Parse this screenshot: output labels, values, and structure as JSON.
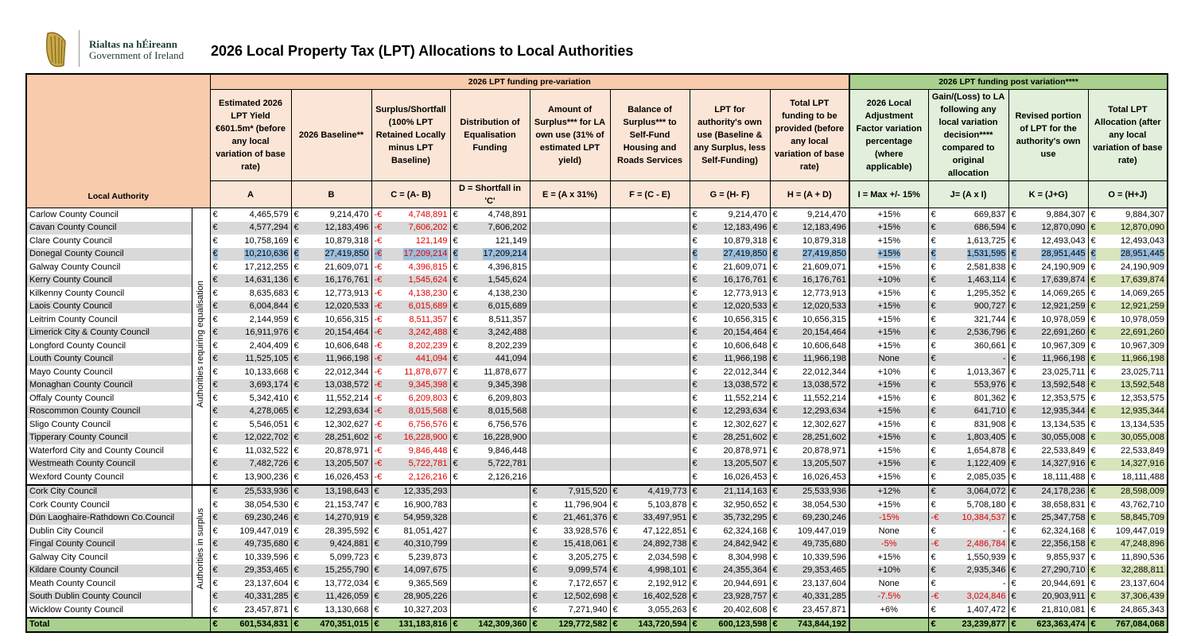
{
  "header": {
    "logo_line1": "Rialtas na hÉireann",
    "logo_line2": "Government of Ireland",
    "title": "2026 Local Property Tax (LPT) Allocations to Local Authorities"
  },
  "table": {
    "corner": "Local Authority",
    "currency": "€",
    "groups": [
      "2026 LPT funding pre-variation",
      "2026 LPT funding post variation****"
    ],
    "columns": [
      {
        "header": "Estimated 2026 LPT Yield €601.5m* (before any local variation of base rate)",
        "formula": "A"
      },
      {
        "header": "2026 Baseline**",
        "formula": "B"
      },
      {
        "header": "Surplus/Shortfall (100% LPT Retained Locally minus LPT Baseline)",
        "formula": "C = (A- B)"
      },
      {
        "header": "Distribution of Equalisation Funding",
        "formula": "D = Shortfall in 'C'"
      },
      {
        "header": "Amount of Surplus*** for LA own use (31% of estimated LPT yield)",
        "formula": "E = (A x 31%)"
      },
      {
        "header": "Balance of Surplus*** to Self-Fund Housing and Roads Services",
        "formula": "F = (C - E)"
      },
      {
        "header": "LPT for authority's own use (Baseline & any Surplus, less Self-Funding)",
        "formula": "G = (H- F)"
      },
      {
        "header": "Total LPT funding to be provided (before any local variation of base rate)",
        "formula": "H = (A + D)"
      },
      {
        "header": "2026 Local Adjustment Factor variation percentage (where applicable)",
        "formula": "I = Max +/- 15%"
      },
      {
        "header": "Gain/(Loss) to LA following any local variation decision**** compared to original allocation",
        "formula": "J= (A x I)"
      },
      {
        "header": "Revised portion of LPT for the authority's own use",
        "formula": "K = (J+G)"
      },
      {
        "header": "Total LPT Allocation (after any local variation of base rate)",
        "formula": "O = (H+J)"
      }
    ],
    "sections": [
      {
        "label": "Authorities requiring equalisation",
        "rows": [
          {
            "name": "Carlow County Council",
            "cells": [
              "4,465,579",
              "9,214,470",
              [
                "-€",
                "4,748,891"
              ],
              "4,748,891",
              null,
              null,
              "9,214,470",
              "9,214,470",
              "+15%",
              "669,837",
              "9,884,307",
              "9,884,307"
            ]
          },
          {
            "name": "Cavan County Council",
            "cells": [
              "4,577,294",
              "12,183,496",
              [
                "-€",
                "7,606,202"
              ],
              "7,606,202",
              null,
              null,
              "12,183,496",
              "12,183,496",
              "+15%",
              "686,594",
              "12,870,090",
              "12,870,090"
            ]
          },
          {
            "name": "Clare County Council",
            "cells": [
              "10,758,169",
              "10,879,318",
              [
                "-€",
                "121,149"
              ],
              "121,149",
              null,
              null,
              "10,879,318",
              "10,879,318",
              "+15%",
              "1,613,725",
              "12,493,043",
              "12,493,043"
            ]
          },
          {
            "name": "Donegal County Council",
            "cells": [
              "10,210,636",
              "27,419,850",
              [
                "-€",
                "17,209,214"
              ],
              "17,209,214",
              null,
              null,
              "27,419,850",
              "27,419,850",
              "+15%",
              "1,531,595",
              "28,951,445",
              "28,951,445"
            ]
          },
          {
            "name": "Galway County Council",
            "cells": [
              "17,212,255",
              "21,609,071",
              [
                "-€",
                "4,396,815"
              ],
              "4,396,815",
              null,
              null,
              "21,609,071",
              "21,609,071",
              "+15%",
              "2,581,838",
              "24,190,909",
              "24,190,909"
            ]
          },
          {
            "name": "Kerry County Council",
            "cells": [
              "14,631,136",
              "16,176,761",
              [
                "-€",
                "1,545,624"
              ],
              "1,545,624",
              null,
              null,
              "16,176,761",
              "16,176,761",
              "+10%",
              "1,463,114",
              "17,639,874",
              "17,639,874"
            ]
          },
          {
            "name": "Kilkenny County Council",
            "cells": [
              "8,635,683",
              "12,773,913",
              [
                "-€",
                "4,138,230"
              ],
              "4,138,230",
              null,
              null,
              "12,773,913",
              "12,773,913",
              "+15%",
              "1,295,352",
              "14,069,265",
              "14,069,265"
            ]
          },
          {
            "name": "Laois County Council",
            "cells": [
              "6,004,844",
              "12,020,533",
              [
                "-€",
                "6,015,689"
              ],
              "6,015,689",
              null,
              null,
              "12,020,533",
              "12,020,533",
              "+15%",
              "900,727",
              "12,921,259",
              "12,921,259"
            ]
          },
          {
            "name": "Leitrim County Council",
            "cells": [
              "2,144,959",
              "10,656,315",
              [
                "-€",
                "8,511,357"
              ],
              "8,511,357",
              null,
              null,
              "10,656,315",
              "10,656,315",
              "+15%",
              "321,744",
              "10,978,059",
              "10,978,059"
            ]
          },
          {
            "name": "Limerick City & County Council",
            "cells": [
              "16,911,976",
              "20,154,464",
              [
                "-€",
                "3,242,488"
              ],
              "3,242,488",
              null,
              null,
              "20,154,464",
              "20,154,464",
              "+15%",
              "2,536,796",
              "22,691,260",
              "22,691,260"
            ]
          },
          {
            "name": "Longford County Council",
            "cells": [
              "2,404,409",
              "10,606,648",
              [
                "-€",
                "8,202,239"
              ],
              "8,202,239",
              null,
              null,
              "10,606,648",
              "10,606,648",
              "+15%",
              "360,661",
              "10,967,309",
              "10,967,309"
            ]
          },
          {
            "name": "Louth County Council",
            "cells": [
              "11,525,105",
              "11,966,198",
              [
                "-€",
                "441,094"
              ],
              "441,094",
              null,
              null,
              "11,966,198",
              "11,966,198",
              "None",
              "-",
              "11,966,198",
              "11,966,198"
            ]
          },
          {
            "name": "Mayo County Council",
            "cells": [
              "10,133,668",
              "22,012,344",
              [
                "-€",
                "11,878,677"
              ],
              "11,878,677",
              null,
              null,
              "22,012,344",
              "22,012,344",
              "+10%",
              "1,013,367",
              "23,025,711",
              "23,025,711"
            ]
          },
          {
            "name": "Monaghan County Council",
            "cells": [
              "3,693,174",
              "13,038,572",
              [
                "-€",
                "9,345,398"
              ],
              "9,345,398",
              null,
              null,
              "13,038,572",
              "13,038,572",
              "+15%",
              "553,976",
              "13,592,548",
              "13,592,548"
            ]
          },
          {
            "name": "Offaly County Council",
            "cells": [
              "5,342,410",
              "11,552,214",
              [
                "-€",
                "6,209,803"
              ],
              "6,209,803",
              null,
              null,
              "11,552,214",
              "11,552,214",
              "+15%",
              "801,362",
              "12,353,575",
              "12,353,575"
            ]
          },
          {
            "name": "Roscommon County Council",
            "cells": [
              "4,278,065",
              "12,293,634",
              [
                "-€",
                "8,015,568"
              ],
              "8,015,568",
              null,
              null,
              "12,293,634",
              "12,293,634",
              "+15%",
              "641,710",
              "12,935,344",
              "12,935,344"
            ]
          },
          {
            "name": "Sligo County Council",
            "cells": [
              "5,546,051",
              "12,302,627",
              [
                "-€",
                "6,756,576"
              ],
              "6,756,576",
              null,
              null,
              "12,302,627",
              "12,302,627",
              "+15%",
              "831,908",
              "13,134,535",
              "13,134,535"
            ]
          },
          {
            "name": "Tipperary County Council",
            "cells": [
              "12,022,702",
              "28,251,602",
              [
                "-€",
                "16,228,900"
              ],
              "16,228,900",
              null,
              null,
              "28,251,602",
              "28,251,602",
              "+15%",
              "1,803,405",
              "30,055,008",
              "30,055,008"
            ]
          },
          {
            "name": "Waterford City and County Council",
            "cells": [
              "11,032,522",
              "20,878,971",
              [
                "-€",
                "9,846,448"
              ],
              "9,846,448",
              null,
              null,
              "20,878,971",
              "20,878,971",
              "+15%",
              "1,654,878",
              "22,533,849",
              "22,533,849"
            ]
          },
          {
            "name": "Westmeath County Council",
            "cells": [
              "7,482,726",
              "13,205,507",
              [
                "-€",
                "5,722,781"
              ],
              "5,722,781",
              null,
              null,
              "13,205,507",
              "13,205,507",
              "+15%",
              "1,122,409",
              "14,327,916",
              "14,327,916"
            ]
          },
          {
            "name": "Wexford County Council",
            "cells": [
              "13,900,236",
              "16,026,453",
              [
                "-€",
                "2,126,216"
              ],
              "2,126,216",
              null,
              null,
              "16,026,453",
              "16,026,453",
              "+15%",
              "2,085,035",
              "18,111,488",
              "18,111,488"
            ]
          }
        ]
      },
      {
        "label": "Authorities in surplus",
        "rows": [
          {
            "name": "Cork City Council",
            "cells": [
              "25,533,936",
              "13,198,643",
              "12,335,293",
              null,
              "7,915,520",
              "4,419,773",
              "21,114,163",
              "25,533,936",
              "+12%",
              "3,064,072",
              "24,178,236",
              "28,598,009"
            ]
          },
          {
            "name": "Cork County Council",
            "cells": [
              "38,054,530",
              "21,153,747",
              "16,900,783",
              null,
              "11,796,904",
              "5,103,878",
              "32,950,652",
              "38,054,530",
              "+15%",
              "5,708,180",
              "38,658,831",
              "43,762,710"
            ]
          },
          {
            "name": "Dún Laoghaire-Rathdown Co.Council",
            "cells": [
              "69,230,246",
              "14,270,919",
              "54,959,328",
              null,
              "21,461,376",
              "33,497,951",
              "35,732,295",
              "69,230,246",
              "-15%",
              [
                "-€",
                "10,384,537"
              ],
              "25,347,758",
              "58,845,709"
            ]
          },
          {
            "name": "Dublin City Council",
            "cells": [
              "109,447,019",
              "28,395,592",
              "81,051,427",
              null,
              "33,928,576",
              "47,122,851",
              "62,324,168",
              "109,447,019",
              "None",
              "-",
              "62,324,168",
              "109,447,019"
            ]
          },
          {
            "name": "Fingal County Council",
            "cells": [
              "49,735,680",
              "9,424,881",
              "40,310,799",
              null,
              "15,418,061",
              "24,892,738",
              "24,842,942",
              "49,735,680",
              "-5%",
              [
                "-€",
                "2,486,784"
              ],
              "22,356,158",
              "47,248,896"
            ]
          },
          {
            "name": "Galway City Council",
            "cells": [
              "10,339,596",
              "5,099,723",
              "5,239,873",
              null,
              "3,205,275",
              "2,034,598",
              "8,304,998",
              "10,339,596",
              "+15%",
              "1,550,939",
              "9,855,937",
              "11,890,536"
            ]
          },
          {
            "name": "Kildare County Council",
            "cells": [
              "29,353,465",
              "15,255,790",
              "14,097,675",
              null,
              "9,099,574",
              "4,998,101",
              "24,355,364",
              "29,353,465",
              "+10%",
              "2,935,346",
              "27,290,710",
              "32,288,811"
            ]
          },
          {
            "name": "Meath County Council",
            "cells": [
              "23,137,604",
              "13,772,034",
              "9,365,569",
              null,
              "7,172,657",
              "2,192,912",
              "20,944,691",
              "23,137,604",
              "None",
              "-",
              "20,944,691",
              "23,137,604"
            ]
          },
          {
            "name": "South Dublin County Council",
            "cells": [
              "40,331,285",
              "11,426,059",
              "28,905,226",
              null,
              "12,502,698",
              "16,402,528",
              "23,928,757",
              "40,331,285",
              "-7.5%",
              [
                "-€",
                "3,024,846"
              ],
              "20,903,911",
              "37,306,439"
            ]
          },
          {
            "name": "Wicklow County Council",
            "cells": [
              "23,457,871",
              "13,130,668",
              "10,327,203",
              null,
              "7,271,940",
              "3,055,263",
              "20,402,608",
              "23,457,871",
              "+6%",
              "1,407,472",
              "21,810,081",
              "24,865,343"
            ]
          }
        ]
      }
    ],
    "total": {
      "name": "Total",
      "cells": [
        "601,534,831",
        "470,351,015",
        "131,183,816",
        "142,309,360",
        "129,772,582",
        "143,720,594",
        "600,123,598",
        "743,844,192",
        null,
        "23,239,877",
        "623,363,474",
        "767,084,068"
      ]
    }
  }
}
